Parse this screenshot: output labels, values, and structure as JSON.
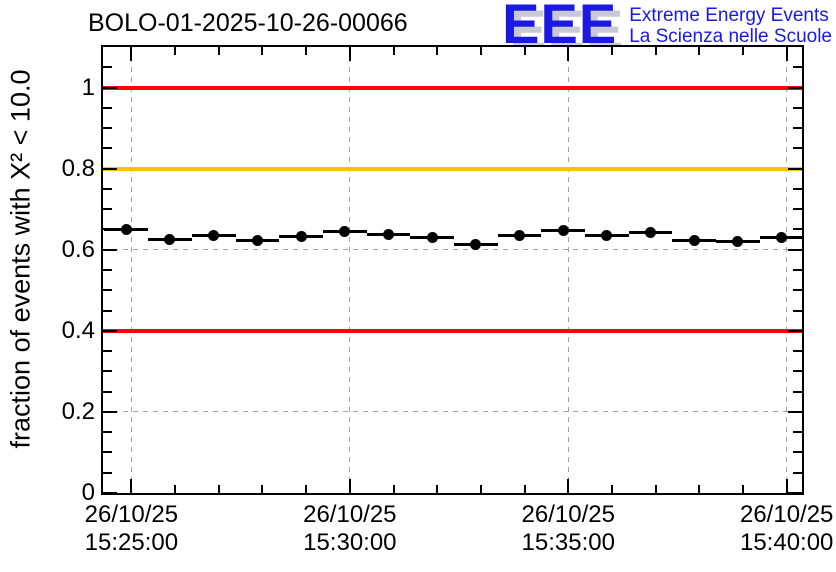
{
  "header": {
    "title": "BOLO-01-2025-10-26-00066",
    "logo": {
      "acronym": "EEE",
      "line1": "Extreme Energy Events",
      "line2": "La Scienza nelle Scuole",
      "color": "#1a1ae0",
      "shadow_color": "#c9c9d6"
    }
  },
  "chart_data": {
    "type": "scatter",
    "title": "BOLO-01-2025-10-26-00066",
    "xlabel": "",
    "ylabel": "fraction of events with X² < 10.0",
    "ylim": [
      0,
      1.1
    ],
    "grid": true,
    "legend_position": "none",
    "x_date": "26/10/25",
    "x_range": {
      "start": "15:24:21",
      "end": "15:40:21"
    },
    "x_minor_step_s": 60,
    "x_ticks": [
      {
        "date": "26/10/25",
        "time": "15:25:00"
      },
      {
        "date": "26/10/25",
        "time": "15:30:00"
      },
      {
        "date": "26/10/25",
        "time": "15:35:00"
      },
      {
        "date": "26/10/25",
        "time": "15:40:00"
      }
    ],
    "y_ticks": [
      {
        "value": 0.0,
        "label": "0"
      },
      {
        "value": 0.2,
        "label": "0.2"
      },
      {
        "value": 0.4,
        "label": "0.4"
      },
      {
        "value": 0.6,
        "label": "0.6"
      },
      {
        "value": 0.8,
        "label": "0.8"
      },
      {
        "value": 1.0,
        "label": "1"
      }
    ],
    "y_minor_step": 0.05,
    "reference_lines": [
      {
        "y": 1.0,
        "color": "#ff0000"
      },
      {
        "y": 0.8,
        "color": "#ffc000"
      },
      {
        "y": 0.4,
        "color": "#ff0000"
      }
    ],
    "series": [
      {
        "name": "fraction",
        "marker": "filled-circle",
        "color": "#000000",
        "bin_halfwidth_s": 30,
        "points": [
          {
            "t": "15:24:53",
            "v": 0.65
          },
          {
            "t": "15:25:53",
            "v": 0.625
          },
          {
            "t": "15:26:53",
            "v": 0.634
          },
          {
            "t": "15:27:53",
            "v": 0.623
          },
          {
            "t": "15:28:53",
            "v": 0.632
          },
          {
            "t": "15:29:53",
            "v": 0.646
          },
          {
            "t": "15:30:53",
            "v": 0.638
          },
          {
            "t": "15:31:53",
            "v": 0.629
          },
          {
            "t": "15:32:53",
            "v": 0.612
          },
          {
            "t": "15:33:53",
            "v": 0.635
          },
          {
            "t": "15:34:53",
            "v": 0.648
          },
          {
            "t": "15:35:53",
            "v": 0.634
          },
          {
            "t": "15:36:53",
            "v": 0.642
          },
          {
            "t": "15:37:53",
            "v": 0.623
          },
          {
            "t": "15:38:53",
            "v": 0.62
          },
          {
            "t": "15:39:53",
            "v": 0.63
          }
        ]
      }
    ]
  }
}
